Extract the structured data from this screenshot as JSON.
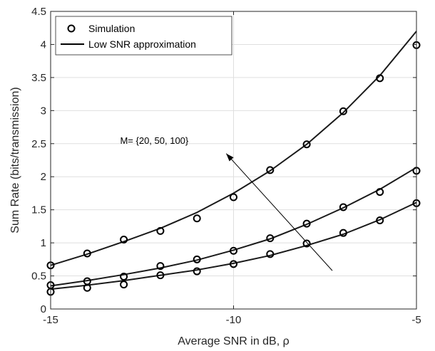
{
  "chart_data": {
    "type": "line",
    "xlabel": "Average SNR in dB, ρ",
    "ylabel": "Sum Rate (bits/transmission)",
    "xlim": [
      -15,
      -5
    ],
    "ylim": [
      0,
      4.5
    ],
    "xticks": [
      -15,
      -10,
      -5
    ],
    "xtick_labels": [
      "-15",
      "-10",
      "-5"
    ],
    "yticks": [
      0,
      0.5,
      1,
      1.5,
      2,
      2.5,
      3,
      3.5,
      4,
      4.5
    ],
    "ytick_labels": [
      "0",
      "0.5",
      "1",
      "1.5",
      "2",
      "2.5",
      "3",
      "3.5",
      "4",
      "4.5"
    ],
    "grid": true,
    "legend_position": "top-left",
    "legend": [
      {
        "label": "Simulation",
        "marker": "circle"
      },
      {
        "label": "Low SNR approximation",
        "marker": "line"
      }
    ],
    "annotation": {
      "text": "M= {20, 50, 100}",
      "arrow_from": [
        -7.3,
        0.58
      ],
      "arrow_to": [
        -10.2,
        2.35
      ],
      "text_position": [
        -13.1,
        2.5
      ]
    },
    "series": [
      {
        "group": "M = 20",
        "simulation": {
          "x": [
            -15,
            -14,
            -13,
            -12,
            -11,
            -10,
            -9,
            -8,
            -7,
            -6,
            -5
          ],
          "y": [
            0.26,
            0.32,
            0.37,
            0.51,
            0.57,
            0.68,
            0.83,
            0.99,
            1.15,
            1.34,
            1.6
          ]
        },
        "approximation": {
          "x": [
            -15,
            -14,
            -13,
            -12,
            -11,
            -10,
            -9,
            -8,
            -7,
            -6,
            -5
          ],
          "y": [
            0.3,
            0.36,
            0.43,
            0.51,
            0.59,
            0.69,
            0.81,
            0.96,
            1.13,
            1.35,
            1.61
          ]
        }
      },
      {
        "group": "M = 50",
        "simulation": {
          "x": [
            -15,
            -14,
            -13,
            -12,
            -11,
            -10,
            -9,
            -8,
            -7,
            -6,
            -5
          ],
          "y": [
            0.36,
            0.42,
            0.49,
            0.65,
            0.75,
            0.88,
            1.07,
            1.29,
            1.54,
            1.77,
            2.09
          ]
        },
        "approximation": {
          "x": [
            -15,
            -14,
            -13,
            -12,
            -11,
            -10,
            -9,
            -8,
            -7,
            -6,
            -5
          ],
          "y": [
            0.35,
            0.43,
            0.52,
            0.62,
            0.74,
            0.89,
            1.06,
            1.28,
            1.53,
            1.81,
            2.14
          ]
        }
      },
      {
        "group": "M = 100",
        "simulation": {
          "x": [
            -15,
            -14,
            -13,
            -12,
            -11,
            -10,
            -9,
            -8,
            -7,
            -6,
            -5
          ],
          "y": [
            0.66,
            0.84,
            1.05,
            1.18,
            1.37,
            1.69,
            2.1,
            2.49,
            2.99,
            3.49,
            3.99
          ]
        },
        "approximation": {
          "x": [
            -15,
            -14,
            -13,
            -12,
            -11,
            -10,
            -9,
            -8,
            -7,
            -6,
            -5
          ],
          "y": [
            0.66,
            0.83,
            1.02,
            1.22,
            1.46,
            1.75,
            2.09,
            2.49,
            2.97,
            3.53,
            4.2
          ]
        }
      }
    ]
  }
}
